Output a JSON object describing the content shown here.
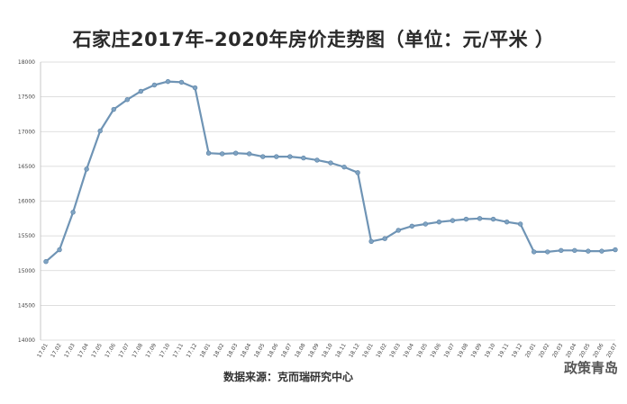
{
  "chart_data": {
    "type": "line",
    "title": "石家庄2017年–2020年房价走势图（单位：元/平米 ）",
    "source": "数据来源：克而瑞研究中心",
    "xlabel": "",
    "ylabel": "",
    "ylim": [
      14000,
      18000
    ],
    "yticks": [
      14000,
      14500,
      15000,
      15500,
      16000,
      16500,
      17000,
      17500,
      18000
    ],
    "grid": true,
    "line_color": "#6f94b5",
    "marker_color": "#7fa3c2",
    "categories": [
      "17.01",
      "17.02",
      "17.03",
      "17.04",
      "17.05",
      "17.06",
      "17.07",
      "17.08",
      "17.09",
      "17.10",
      "17.11",
      "17.12",
      "18.01",
      "18.02",
      "18.03",
      "18.04",
      "18.05",
      "18.06",
      "18.07",
      "18.08",
      "18.09",
      "18.10",
      "18.11",
      "18.12",
      "19.01",
      "19.02",
      "19.03",
      "19.04",
      "19.05",
      "19.06",
      "19.07",
      "19.08",
      "19.09",
      "19.10",
      "19.11",
      "19.12",
      "20.01",
      "20.02",
      "20.03",
      "20.04",
      "20.05",
      "20.06",
      "20.07"
    ],
    "values": [
      15130,
      15300,
      15840,
      16460,
      17010,
      17320,
      17460,
      17580,
      17670,
      17720,
      17710,
      17630,
      16690,
      16680,
      16690,
      16680,
      16640,
      16640,
      16640,
      16620,
      16590,
      16550,
      16490,
      16410,
      15420,
      15460,
      15580,
      15640,
      15670,
      15700,
      15720,
      15740,
      15750,
      15740,
      15700,
      15670,
      15270,
      15270,
      15290,
      15290,
      15280,
      15280,
      15300
    ]
  },
  "watermark": "政策青岛"
}
